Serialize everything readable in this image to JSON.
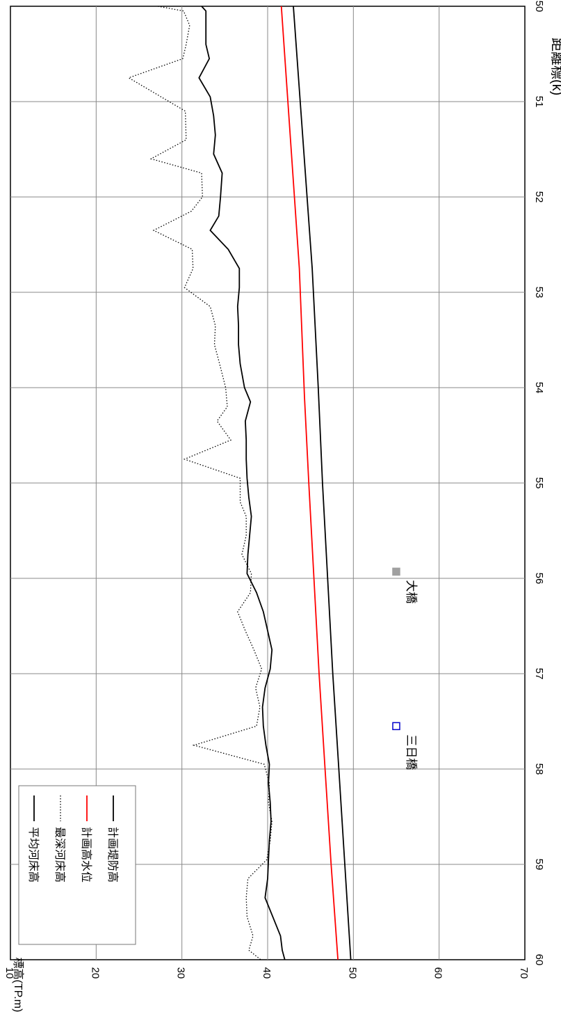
{
  "chart_data": {
    "type": "line",
    "title": "",
    "xlabel": "距離標(k)",
    "ylabel": "標高(TP.m)",
    "xlim": [
      50,
      60
    ],
    "ylim": [
      10,
      70
    ],
    "x_ticks": [
      "50",
      "51",
      "52",
      "53",
      "54",
      "55",
      "56",
      "57",
      "58",
      "59",
      "60"
    ],
    "y_ticks": [
      "10",
      "20",
      "30",
      "40",
      "50",
      "60",
      "70"
    ],
    "grid": true,
    "legend_position": "bottom-left",
    "series": [
      {
        "name": "計画堤防高",
        "color": "#000000",
        "style": "solid",
        "x": [
          50,
          52.75,
          54,
          55,
          56,
          57,
          58,
          59,
          60
        ],
        "y": [
          43.0,
          45.2,
          45.9,
          46.4,
          47.0,
          47.6,
          48.3,
          49.0,
          49.7
        ]
      },
      {
        "name": "計画高水位",
        "color": "#ff0000",
        "style": "solid",
        "x": [
          50,
          52.75,
          54.1,
          55,
          56,
          57,
          58,
          59,
          60
        ],
        "y": [
          41.6,
          43.7,
          44.3,
          44.8,
          45.4,
          46.0,
          46.7,
          47.4,
          48.2
        ]
      },
      {
        "name": "最深河床高",
        "color": "#000000",
        "style": "dotted",
        "x": [
          50,
          50.05,
          50.2,
          50.4,
          50.55,
          50.75,
          51.1,
          51.4,
          51.6,
          51.75,
          52.0,
          52.15,
          52.35,
          52.55,
          52.75,
          52.95,
          53.15,
          53.35,
          53.55,
          53.75,
          54.0,
          54.2,
          54.35,
          54.55,
          54.75,
          54.95,
          55.2,
          55.35,
          55.55,
          55.75,
          55.95,
          56.15,
          56.35,
          56.55,
          56.75,
          56.95,
          57.15,
          57.35,
          57.55,
          57.75,
          57.95,
          58.15,
          58.35,
          58.55,
          58.75,
          58.95,
          59.15,
          59.35,
          59.55,
          59.75,
          59.9,
          60.0
        ],
        "y": [
          27.2,
          30.2,
          30.9,
          30.5,
          30.1,
          23.8,
          30.4,
          30.5,
          26.4,
          32.3,
          32.4,
          31.1,
          26.7,
          31.2,
          31.3,
          30.3,
          33.3,
          33.9,
          33.8,
          34.4,
          35.1,
          35.3,
          34.1,
          35.7,
          30.3,
          36.8,
          36.8,
          37.5,
          37.5,
          37.0,
          38.1,
          38.0,
          36.5,
          37.4,
          38.4,
          39.3,
          38.6,
          39.1,
          38.7,
          31.4,
          39.6,
          40.2,
          40.1,
          40.5,
          40.3,
          39.9,
          37.7,
          37.5,
          37.6,
          38.3,
          37.8,
          39.2
        ]
      },
      {
        "name": "平均河床高",
        "color": "#000000",
        "style": "solid",
        "x": [
          50,
          50.05,
          50.4,
          50.55,
          50.75,
          50.95,
          51.15,
          51.35,
          51.55,
          51.75,
          52.0,
          52.2,
          52.35,
          52.55,
          52.75,
          52.95,
          53.15,
          53.35,
          53.55,
          53.75,
          54.0,
          54.15,
          54.35,
          54.55,
          54.75,
          54.95,
          55.15,
          55.35,
          55.55,
          55.75,
          55.95,
          56.15,
          56.35,
          56.55,
          56.75,
          56.95,
          57.15,
          57.35,
          57.55,
          57.75,
          57.95,
          58.15,
          58.35,
          58.55,
          58.75,
          58.95,
          59.15,
          59.35,
          59.55,
          59.75,
          59.9,
          60.0
        ],
        "y": [
          32.3,
          32.8,
          32.8,
          33.2,
          32.0,
          33.3,
          33.7,
          33.9,
          33.7,
          34.7,
          34.5,
          34.3,
          33.3,
          35.4,
          36.7,
          36.7,
          36.5,
          36.6,
          36.6,
          36.8,
          37.3,
          38.0,
          37.4,
          37.5,
          37.5,
          37.6,
          37.8,
          38.1,
          37.9,
          37.7,
          37.6,
          38.7,
          39.5,
          40.0,
          40.5,
          40.3,
          39.7,
          39.4,
          39.5,
          39.8,
          40.2,
          40.1,
          40.3,
          40.4,
          40.2,
          40.1,
          40.0,
          39.7,
          40.6,
          41.5,
          41.7,
          42.0
        ]
      }
    ],
    "annotations": [
      {
        "text": "大橋",
        "x": 55.93,
        "y": 55.0,
        "marker": "filled-square",
        "color": "#a0a0a0"
      },
      {
        "text": "三日橋",
        "x": 57.55,
        "y": 55.0,
        "marker": "hollow-square",
        "color": "#0000cc"
      }
    ]
  }
}
